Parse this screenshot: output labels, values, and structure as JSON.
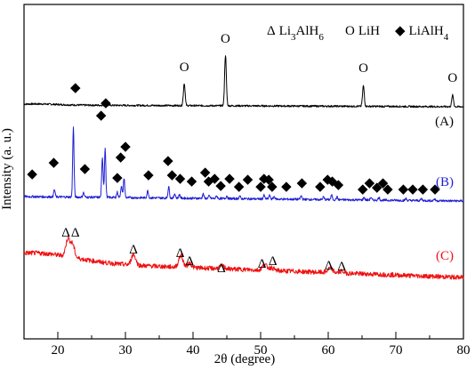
{
  "chart_data": {
    "type": "line",
    "xlabel": "2θ (degree)",
    "ylabel": "Intensity (a. u.)",
    "xlim": [
      15,
      80
    ],
    "ticks": [
      20,
      30,
      40,
      50,
      60,
      70,
      80
    ],
    "tick_labels": [
      "20",
      "30",
      "40",
      "50",
      "60",
      "70",
      "80"
    ],
    "grid": false,
    "legend": {
      "placement": "top-right",
      "entries": [
        {
          "symbol": "Δ",
          "label": "Li",
          "sub1": "3",
          "label2": "AlH",
          "sub2": "6"
        },
        {
          "symbol": "O",
          "label": "LiH",
          "sub1": "",
          "label2": "",
          "sub2": ""
        },
        {
          "symbol": "◆",
          "label": "LiAlH",
          "sub1": "4",
          "label2": "",
          "sub2": ""
        }
      ]
    },
    "series": [
      {
        "name": "(A)",
        "color": "#000000",
        "baseline": 0.0,
        "baseline_end": -2.0,
        "noise": 1.0,
        "peaks": [
          {
            "x": 38.7,
            "height": 25,
            "width": 0.18
          },
          {
            "x": 44.8,
            "height": 57,
            "width": 0.18
          },
          {
            "x": 65.2,
            "height": 23,
            "width": 0.18
          },
          {
            "x": 78.4,
            "height": 13,
            "width": 0.18
          }
        ],
        "markers": [
          {
            "x": 38.7,
            "y": 38,
            "symbol": "O"
          },
          {
            "x": 44.8,
            "y": 70,
            "symbol": "O"
          },
          {
            "x": 65.2,
            "y": 37,
            "symbol": "O"
          },
          {
            "x": 78.4,
            "y": 26,
            "symbol": "O"
          }
        ],
        "label_y": -23
      },
      {
        "name": "(B)",
        "color": "#1f1fd6",
        "baseline": -103,
        "baseline_end": -108,
        "noise": 1.3,
        "peaks": [
          {
            "x": 19.5,
            "height": 8,
            "width": 0.15
          },
          {
            "x": 22.3,
            "height": 78,
            "width": 0.14
          },
          {
            "x": 23.8,
            "height": 5,
            "width": 0.15
          },
          {
            "x": 26.6,
            "height": 45,
            "width": 0.15
          },
          {
            "x": 27.0,
            "height": 55,
            "width": 0.14
          },
          {
            "x": 28.8,
            "height": 6,
            "width": 0.15
          },
          {
            "x": 29.4,
            "height": 13,
            "width": 0.15
          },
          {
            "x": 29.8,
            "height": 22,
            "width": 0.14
          },
          {
            "x": 33.3,
            "height": 8,
            "width": 0.15
          },
          {
            "x": 36.4,
            "height": 13,
            "width": 0.15
          },
          {
            "x": 37.3,
            "height": 5,
            "width": 0.15
          },
          {
            "x": 38.0,
            "height": 4,
            "width": 0.15
          },
          {
            "x": 41.5,
            "height": 5,
            "width": 0.15
          },
          {
            "x": 42.4,
            "height": 3,
            "width": 0.15
          },
          {
            "x": 43.5,
            "height": 3,
            "width": 0.15
          },
          {
            "x": 45.0,
            "height": 3,
            "width": 0.15
          },
          {
            "x": 46.9,
            "height": 3,
            "width": 0.15
          },
          {
            "x": 50.5,
            "height": 4,
            "width": 0.15
          },
          {
            "x": 51.3,
            "height": 4,
            "width": 0.15
          },
          {
            "x": 52.0,
            "height": 3,
            "width": 0.15
          },
          {
            "x": 56.0,
            "height": 4,
            "width": 0.15
          },
          {
            "x": 59.3,
            "height": 3,
            "width": 0.15
          },
          {
            "x": 60.5,
            "height": 5,
            "width": 0.15
          },
          {
            "x": 61.3,
            "height": 3,
            "width": 0.15
          },
          {
            "x": 65.3,
            "height": 3,
            "width": 0.15
          },
          {
            "x": 66.3,
            "height": 3,
            "width": 0.15
          },
          {
            "x": 67.5,
            "height": 3,
            "width": 0.15
          },
          {
            "x": 71.5,
            "height": 2,
            "width": 0.15
          },
          {
            "x": 73.8,
            "height": 2,
            "width": 0.15
          },
          {
            "x": 75.7,
            "height": 2,
            "width": 0.15
          }
        ],
        "markers": [
          {
            "x": 16.2,
            "y": -82,
            "symbol": "◆"
          },
          {
            "x": 19.4,
            "y": -69,
            "symbol": "◆"
          },
          {
            "x": 22.6,
            "y": 15,
            "symbol": "◆"
          },
          {
            "x": 24.0,
            "y": -76,
            "symbol": "◆"
          },
          {
            "x": 26.4,
            "y": -16,
            "symbol": "◆"
          },
          {
            "x": 27.1,
            "y": -2,
            "symbol": "◆"
          },
          {
            "x": 28.8,
            "y": -86,
            "symbol": "◆"
          },
          {
            "x": 29.3,
            "y": -63,
            "symbol": "◆"
          },
          {
            "x": 30.0,
            "y": -51,
            "symbol": "◆"
          },
          {
            "x": 33.4,
            "y": -83,
            "symbol": "◆"
          },
          {
            "x": 36.3,
            "y": -67,
            "symbol": "◆"
          },
          {
            "x": 36.9,
            "y": -83,
            "symbol": "◆"
          },
          {
            "x": 38.1,
            "y": -87,
            "symbol": "◆"
          },
          {
            "x": 39.8,
            "y": -90,
            "symbol": "◆"
          },
          {
            "x": 41.8,
            "y": -80,
            "symbol": "◆"
          },
          {
            "x": 42.3,
            "y": -90,
            "symbol": "◆"
          },
          {
            "x": 43.2,
            "y": -87,
            "symbol": "◆"
          },
          {
            "x": 44.1,
            "y": -95,
            "symbol": "◆"
          },
          {
            "x": 45.4,
            "y": -87,
            "symbol": "◆"
          },
          {
            "x": 46.8,
            "y": -96,
            "symbol": "◆"
          },
          {
            "x": 48.1,
            "y": -88,
            "symbol": "◆"
          },
          {
            "x": 50.0,
            "y": -96,
            "symbol": "◆"
          },
          {
            "x": 50.5,
            "y": -87,
            "symbol": "◆"
          },
          {
            "x": 51.2,
            "y": -88,
            "symbol": "◆"
          },
          {
            "x": 51.7,
            "y": -96,
            "symbol": "◆"
          },
          {
            "x": 53.8,
            "y": -96,
            "symbol": "◆"
          },
          {
            "x": 56.1,
            "y": -92,
            "symbol": "◆"
          },
          {
            "x": 58.8,
            "y": -96,
            "symbol": "◆"
          },
          {
            "x": 59.9,
            "y": -88,
            "symbol": "◆"
          },
          {
            "x": 60.6,
            "y": -90,
            "symbol": "◆"
          },
          {
            "x": 61.5,
            "y": -94,
            "symbol": "◆"
          },
          {
            "x": 65.1,
            "y": -99,
            "symbol": "◆"
          },
          {
            "x": 66.1,
            "y": -92,
            "symbol": "◆"
          },
          {
            "x": 67.2,
            "y": -97,
            "symbol": "◆"
          },
          {
            "x": 68.1,
            "y": -92,
            "symbol": "◆"
          },
          {
            "x": 68.8,
            "y": -99,
            "symbol": "◆"
          },
          {
            "x": 71.1,
            "y": -99,
            "symbol": "◆"
          },
          {
            "x": 72.5,
            "y": -99,
            "symbol": "◆"
          },
          {
            "x": 74.0,
            "y": -99,
            "symbol": "◆"
          },
          {
            "x": 75.8,
            "y": -99,
            "symbol": "◆"
          }
        ],
        "label_y": -91
      },
      {
        "name": "(C)",
        "color": "#ee1111",
        "baseline": -176,
        "baseline_end": -194,
        "noise": 2.6,
        "peaks": [
          {
            "x": 21.5,
            "height": 20,
            "width": 0.45
          },
          {
            "x": 22.2,
            "height": 14,
            "width": 0.4
          },
          {
            "x": 31.2,
            "height": 12,
            "width": 0.45
          },
          {
            "x": 38.2,
            "height": 13,
            "width": 0.45
          },
          {
            "x": 39.5,
            "height": 5,
            "width": 0.4
          },
          {
            "x": 44.3,
            "height": 3,
            "width": 0.5
          },
          {
            "x": 50.6,
            "height": 6,
            "width": 0.5
          },
          {
            "x": 51.6,
            "height": 3,
            "width": 0.5
          },
          {
            "x": 60.3,
            "height": 5,
            "width": 0.5
          },
          {
            "x": 62.0,
            "height": 2,
            "width": 0.5
          }
        ],
        "markers": [
          {
            "x": 21.2,
            "y": -148,
            "symbol": "Δ"
          },
          {
            "x": 22.6,
            "y": -148,
            "symbol": "Δ"
          },
          {
            "x": 31.2,
            "y": -167,
            "symbol": "Δ"
          },
          {
            "x": 38.1,
            "y": -171,
            "symbol": "Δ"
          },
          {
            "x": 39.5,
            "y": -180,
            "symbol": "Δ"
          },
          {
            "x": 44.2,
            "y": -188,
            "symbol": "Δ"
          },
          {
            "x": 50.2,
            "y": -183,
            "symbol": "Δ"
          },
          {
            "x": 51.8,
            "y": -180,
            "symbol": "Δ"
          },
          {
            "x": 60.1,
            "y": -185,
            "symbol": "Δ"
          },
          {
            "x": 62.0,
            "y": -186,
            "symbol": "Δ"
          }
        ],
        "label_y": -174
      }
    ]
  }
}
